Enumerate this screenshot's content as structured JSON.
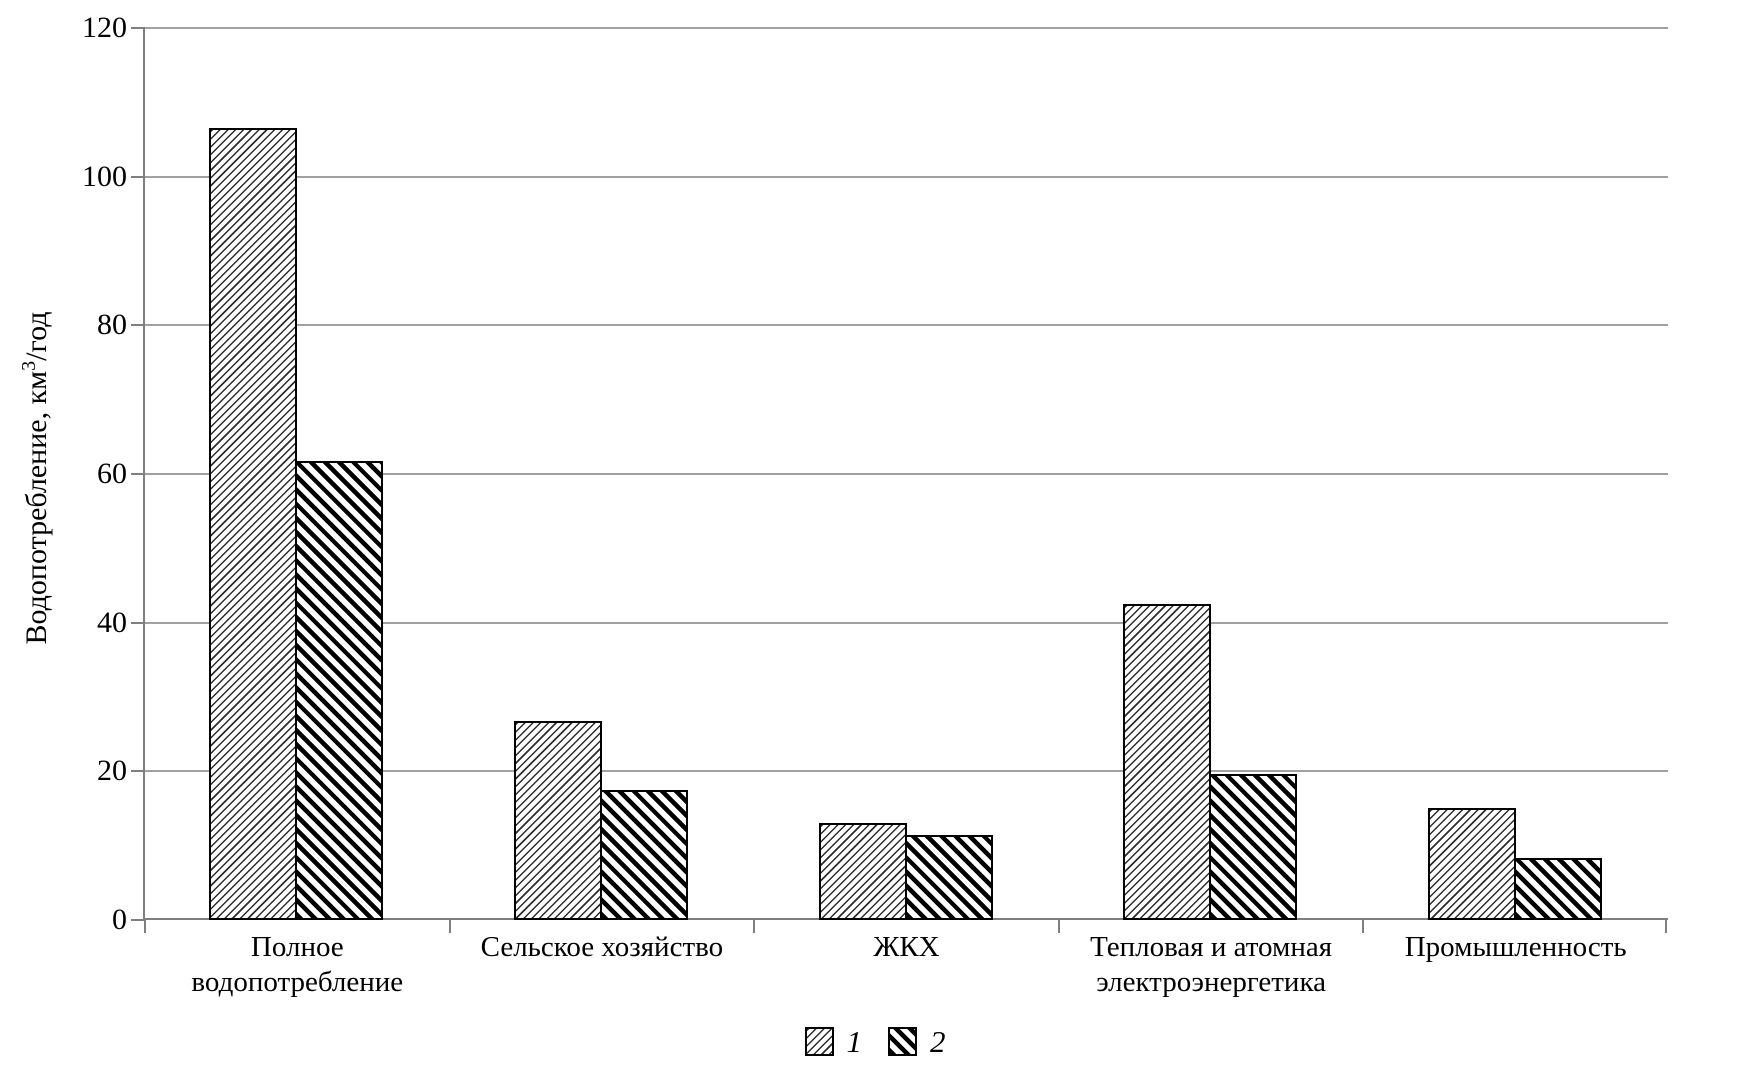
{
  "figure": {
    "background": "#ffffff"
  },
  "colors": {
    "grid": "#a0a0a0",
    "axis": "#7f7f7f",
    "bar_border": "#000000",
    "text": "#000000",
    "background": "#ffffff"
  },
  "chart_data": {
    "type": "bar",
    "title": "",
    "xlabel": "",
    "ylabel": "Водопотребление, км³/год",
    "ylabel_parts": {
      "base": "Водопотребление, км",
      "sup": "3",
      "rest": "/год"
    },
    "categories": [
      "Полное\nводопотребление",
      "Сельское хозяйство",
      "ЖКХ",
      "Тепловая и атомная\nэлектроэнергетика",
      "Промышленность"
    ],
    "series": [
      {
        "name": "1",
        "pattern": "thin-forward-diagonal-hatch",
        "values": [
          106.5,
          26.8,
          13.0,
          42.5,
          15.0
        ]
      },
      {
        "name": "2",
        "pattern": "thick-backward-diagonal-hatch",
        "values": [
          61.7,
          17.5,
          11.4,
          19.7,
          8.4
        ]
      }
    ],
    "ylim": [
      0,
      120
    ],
    "yticks": [
      0,
      20,
      40,
      60,
      80,
      100,
      120
    ],
    "grid": "horizontal",
    "legend_position": "bottom-center"
  }
}
